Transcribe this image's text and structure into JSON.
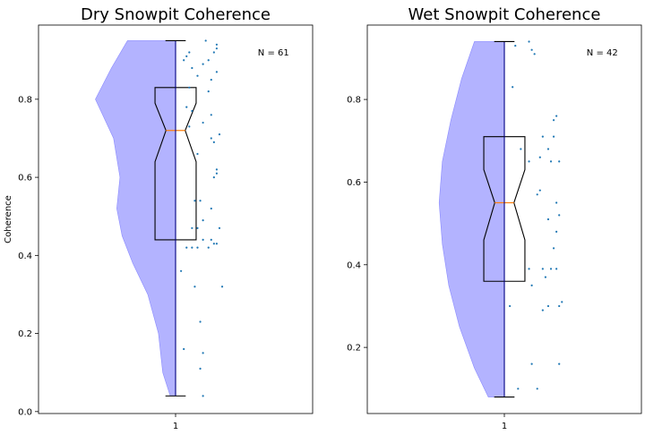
{
  "chart_data": [
    {
      "type": "violin-box",
      "title": "Dry Snowpit Coherence",
      "ylabel": "Coherence",
      "xlabel": "",
      "categories": [
        "1"
      ],
      "ylim": [
        -0.005,
        0.99
      ],
      "yticks": [
        0.0,
        0.2,
        0.4,
        0.6,
        0.8
      ],
      "ytick_labels": [
        "0.0",
        "0.2",
        "0.4",
        "0.6",
        "0.8"
      ],
      "annotation": "N = 61",
      "violin_color": "#b3b3ff",
      "box": {
        "min": 0.04,
        "q1": 0.44,
        "median": 0.72,
        "q3": 0.83,
        "max": 0.95,
        "notch_low": 0.64,
        "notch_high": 0.79
      },
      "violin_profile": {
        "y": [
          0.04,
          0.1,
          0.2,
          0.3,
          0.38,
          0.45,
          0.52,
          0.6,
          0.7,
          0.8,
          0.88,
          0.95
        ],
        "width": [
          0.05,
          0.12,
          0.16,
          0.26,
          0.4,
          0.5,
          0.55,
          0.52,
          0.58,
          0.75,
          0.6,
          0.45
        ]
      },
      "points": [
        {
          "x": 1.11,
          "y": 0.95
        },
        {
          "x": 1.15,
          "y": 0.94
        },
        {
          "x": 1.15,
          "y": 0.93
        },
        {
          "x": 1.05,
          "y": 0.92
        },
        {
          "x": 1.14,
          "y": 0.92
        },
        {
          "x": 1.04,
          "y": 0.91
        },
        {
          "x": 1.12,
          "y": 0.9
        },
        {
          "x": 1.03,
          "y": 0.9
        },
        {
          "x": 1.1,
          "y": 0.89
        },
        {
          "x": 1.06,
          "y": 0.88
        },
        {
          "x": 1.15,
          "y": 0.87
        },
        {
          "x": 1.08,
          "y": 0.86
        },
        {
          "x": 1.13,
          "y": 0.85
        },
        {
          "x": 1.05,
          "y": 0.83
        },
        {
          "x": 1.12,
          "y": 0.82
        },
        {
          "x": 1.04,
          "y": 0.78
        },
        {
          "x": 1.06,
          "y": 0.77
        },
        {
          "x": 1.13,
          "y": 0.76
        },
        {
          "x": 1.1,
          "y": 0.74
        },
        {
          "x": 1.05,
          "y": 0.73
        },
        {
          "x": 1.16,
          "y": 0.71
        },
        {
          "x": 1.13,
          "y": 0.7
        },
        {
          "x": 1.14,
          "y": 0.69
        },
        {
          "x": 1.08,
          "y": 0.66
        },
        {
          "x": 1.15,
          "y": 0.62
        },
        {
          "x": 1.15,
          "y": 0.61
        },
        {
          "x": 1.14,
          "y": 0.6
        },
        {
          "x": 1.09,
          "y": 0.54
        },
        {
          "x": 1.07,
          "y": 0.54
        },
        {
          "x": 1.13,
          "y": 0.52
        },
        {
          "x": 1.1,
          "y": 0.49
        },
        {
          "x": 1.08,
          "y": 0.47
        },
        {
          "x": 1.06,
          "y": 0.47
        },
        {
          "x": 1.16,
          "y": 0.47
        },
        {
          "x": 1.13,
          "y": 0.44
        },
        {
          "x": 1.1,
          "y": 0.44
        },
        {
          "x": 1.15,
          "y": 0.43
        },
        {
          "x": 1.14,
          "y": 0.43
        },
        {
          "x": 1.06,
          "y": 0.42
        },
        {
          "x": 1.04,
          "y": 0.42
        },
        {
          "x": 1.12,
          "y": 0.42
        },
        {
          "x": 1.08,
          "y": 0.42
        },
        {
          "x": 1.02,
          "y": 0.36
        },
        {
          "x": 1.07,
          "y": 0.32
        },
        {
          "x": 1.17,
          "y": 0.32
        },
        {
          "x": 1.09,
          "y": 0.23
        },
        {
          "x": 1.03,
          "y": 0.16
        },
        {
          "x": 1.1,
          "y": 0.15
        },
        {
          "x": 1.09,
          "y": 0.11
        },
        {
          "x": 1.1,
          "y": 0.04
        }
      ]
    },
    {
      "type": "violin-box",
      "title": "Wet Snowpit Coherence",
      "ylabel": "",
      "xlabel": "",
      "categories": [
        "1"
      ],
      "ylim": [
        0.04,
        0.98
      ],
      "yticks": [
        0.2,
        0.4,
        0.6,
        0.8
      ],
      "ytick_labels": [
        "0.2",
        "0.4",
        "0.6",
        "0.8"
      ],
      "annotation": "N = 42",
      "violin_color": "#b3b3ff",
      "box": {
        "min": 0.08,
        "q1": 0.36,
        "median": 0.55,
        "q3": 0.71,
        "max": 0.94,
        "notch_low": 0.46,
        "notch_high": 0.63
      },
      "violin_profile": {
        "y": [
          0.08,
          0.15,
          0.25,
          0.35,
          0.45,
          0.55,
          0.65,
          0.75,
          0.85,
          0.94
        ],
        "width": [
          0.15,
          0.28,
          0.42,
          0.52,
          0.58,
          0.61,
          0.58,
          0.5,
          0.4,
          0.28
        ]
      },
      "points": [
        {
          "x": 1.09,
          "y": 0.94
        },
        {
          "x": 1.04,
          "y": 0.93
        },
        {
          "x": 1.1,
          "y": 0.92
        },
        {
          "x": 1.11,
          "y": 0.91
        },
        {
          "x": 1.03,
          "y": 0.83
        },
        {
          "x": 1.19,
          "y": 0.76
        },
        {
          "x": 1.18,
          "y": 0.75
        },
        {
          "x": 1.14,
          "y": 0.71
        },
        {
          "x": 1.18,
          "y": 0.71
        },
        {
          "x": 1.06,
          "y": 0.68
        },
        {
          "x": 1.16,
          "y": 0.68
        },
        {
          "x": 1.13,
          "y": 0.66
        },
        {
          "x": 1.09,
          "y": 0.65
        },
        {
          "x": 1.17,
          "y": 0.65
        },
        {
          "x": 1.2,
          "y": 0.65
        },
        {
          "x": 1.13,
          "y": 0.58
        },
        {
          "x": 1.12,
          "y": 0.57
        },
        {
          "x": 1.19,
          "y": 0.55
        },
        {
          "x": 1.2,
          "y": 0.52
        },
        {
          "x": 1.16,
          "y": 0.51
        },
        {
          "x": 1.19,
          "y": 0.48
        },
        {
          "x": 1.18,
          "y": 0.44
        },
        {
          "x": 1.09,
          "y": 0.39
        },
        {
          "x": 1.14,
          "y": 0.39
        },
        {
          "x": 1.17,
          "y": 0.39
        },
        {
          "x": 1.19,
          "y": 0.39
        },
        {
          "x": 1.15,
          "y": 0.37
        },
        {
          "x": 1.1,
          "y": 0.35
        },
        {
          "x": 1.21,
          "y": 0.31
        },
        {
          "x": 1.2,
          "y": 0.3
        },
        {
          "x": 1.02,
          "y": 0.3
        },
        {
          "x": 1.16,
          "y": 0.3
        },
        {
          "x": 1.14,
          "y": 0.29
        },
        {
          "x": 1.1,
          "y": 0.16
        },
        {
          "x": 1.2,
          "y": 0.16
        },
        {
          "x": 1.05,
          "y": 0.1
        },
        {
          "x": 1.12,
          "y": 0.1
        }
      ]
    }
  ]
}
